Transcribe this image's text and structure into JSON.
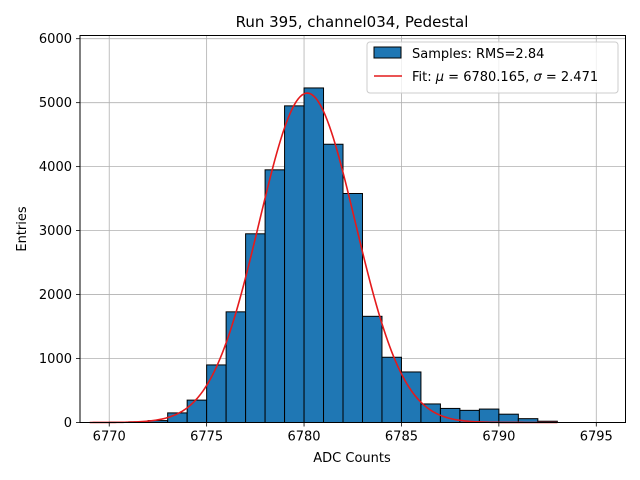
{
  "chart_data": {
    "type": "bar",
    "title": "Run 395, channel034, Pedestal",
    "xlabel": "ADC Counts",
    "ylabel": "Entries",
    "xlim": [
      6768.5,
      6796.5
    ],
    "ylim": [
      0,
      6050
    ],
    "xticks": [
      6770,
      6775,
      6780,
      6785,
      6790,
      6795
    ],
    "yticks": [
      0,
      1000,
      2000,
      3000,
      4000,
      5000,
      6000
    ],
    "grid": true,
    "legend_position": "top-right",
    "bin_width": 1,
    "series": [
      {
        "name": "Samples: RMS=2.84",
        "kind": "histogram",
        "color": "#1f77b4",
        "edgecolor": "#000000",
        "bin_left_edges": [
          6770,
          6771,
          6772,
          6773,
          6774,
          6775,
          6776,
          6777,
          6778,
          6779,
          6780,
          6781,
          6782,
          6783,
          6784,
          6785,
          6786,
          6787,
          6788,
          6789,
          6790,
          6791,
          6792
        ],
        "values": [
          5,
          10,
          30,
          150,
          350,
          900,
          1730,
          2950,
          3950,
          4950,
          5230,
          4350,
          3580,
          1660,
          1020,
          790,
          290,
          220,
          190,
          210,
          130,
          60,
          20
        ]
      },
      {
        "name": "Fit: μ = 6780.165, σ = 2.471",
        "legend_prefix": "Fit: ",
        "legend_mu": "μ",
        "legend_mid": " = 6780.165, ",
        "legend_sigma": "σ",
        "legend_suffix": " = 2.471",
        "kind": "gaussian",
        "color": "#e41a1c",
        "mu": 6780.165,
        "sigma": 2.471,
        "amplitude": 5150,
        "x_range": [
          6769,
          6793
        ]
      }
    ]
  }
}
